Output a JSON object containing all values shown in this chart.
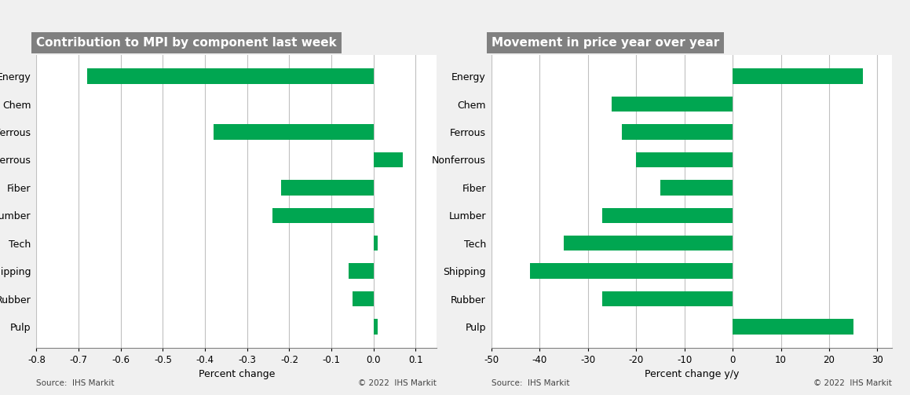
{
  "categories": [
    "Energy",
    "Chem",
    "Ferrous",
    "Nonferrous",
    "Fiber",
    "Lumber",
    "Tech",
    "Shipping",
    "Rubber",
    "Pulp"
  ],
  "left_values": [
    -0.68,
    0.0,
    -0.38,
    0.07,
    -0.22,
    -0.24,
    0.01,
    -0.06,
    -0.05,
    0.01
  ],
  "right_values": [
    27.0,
    -25.0,
    -23.0,
    -20.0,
    -15.0,
    -27.0,
    -35.0,
    -42.0,
    -27.0,
    25.0
  ],
  "left_title": "Contribution to MPI by component last week",
  "right_title": "Movement in price year over year",
  "left_xlabel": "Percent change",
  "right_xlabel": "Percent change y/y",
  "left_xlim": [
    -0.8,
    0.15
  ],
  "right_xlim": [
    -50,
    33
  ],
  "left_xticks": [
    -0.8,
    -0.7,
    -0.6,
    -0.5,
    -0.4,
    -0.3,
    -0.2,
    -0.1,
    0.0,
    0.1
  ],
  "right_xticks": [
    -50,
    -40,
    -30,
    -20,
    -10,
    0,
    10,
    20,
    30
  ],
  "bar_color": "#00a651",
  "title_bg_color": "#808080",
  "title_text_color": "#ffffff",
  "bg_color": "#f0f0f0",
  "plot_bg_color": "#ffffff",
  "grid_color": "#c0c0c0",
  "source_left": "Source:  IHS Markit",
  "source_right": "Source:  IHS Markit",
  "copyright_left": "© 2022  IHS Markit",
  "copyright_right": "© 2022  IHS Markit",
  "title_fontsize": 11,
  "label_fontsize": 9,
  "tick_fontsize": 8.5,
  "source_fontsize": 7.5
}
